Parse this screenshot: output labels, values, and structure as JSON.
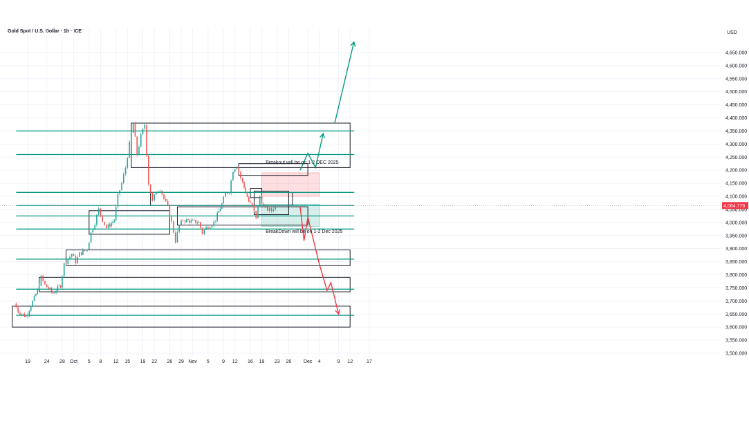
{
  "header": {
    "title": "Gold Spot / U.S. Dollar · 1h · ICE"
  },
  "currency": "USD",
  "colors": {
    "up": "#26a69a",
    "down": "#ef5350",
    "teal": "#089981",
    "red_line": "#f23645",
    "red_zone": "rgba(242,54,69,0.16)",
    "green_zone": "rgba(8,153,129,0.16)",
    "price_tag": "#f23645"
  },
  "chart_data": {
    "type": "candlestick",
    "title": "Gold Spot / U.S. Dollar · 1h · ICE",
    "ylim": [
      3500,
      4700
    ],
    "y_ticks": [
      "4,650.000",
      "4,600.000",
      "4,550.000",
      "4,500.000",
      "4,450.000",
      "4,400.000",
      "4,350.000",
      "4,300.000",
      "4,250.000",
      "4,200.000",
      "4,150.000",
      "4,100.000",
      "4,050.000",
      "4,000.000",
      "3,950.000",
      "3,900.000",
      "3,850.000",
      "3,800.000",
      "3,750.000",
      "3,700.000",
      "3,650.000",
      "3,600.000",
      "3,550.000",
      "3,500.000"
    ],
    "y_tick_values": [
      4650,
      4600,
      4550,
      4500,
      4450,
      4400,
      4350,
      4300,
      4250,
      4200,
      4150,
      4100,
      4050,
      4000,
      3950,
      3900,
      3850,
      3800,
      3750,
      3700,
      3650,
      3600,
      3550,
      3500
    ],
    "x_ticks": [
      "19",
      "24",
      "28",
      "Oct",
      "5",
      "8",
      "12",
      "15",
      "19",
      "22",
      "26",
      "29",
      "Nov",
      "5",
      "9",
      "12",
      "16",
      "19",
      "23",
      "26",
      "Dec",
      "4",
      "9",
      "12",
      "17"
    ],
    "current_price": "4,064.779",
    "price_path": [
      [
        "2025-09-16",
        3690
      ],
      [
        "2025-09-17",
        3660
      ],
      [
        "2025-09-19",
        3640
      ],
      [
        "2025-09-22",
        3740
      ],
      [
        "2025-09-23",
        3790
      ],
      [
        "2025-09-24",
        3760
      ],
      [
        "2025-09-26",
        3730
      ],
      [
        "2025-09-28",
        3760
      ],
      [
        "2025-09-29",
        3840
      ],
      [
        "2025-09-30",
        3860
      ],
      [
        "2025-10-01",
        3880
      ],
      [
        "2025-10-02",
        3850
      ],
      [
        "2025-10-03",
        3880
      ],
      [
        "2025-10-05",
        3900
      ],
      [
        "2025-10-06",
        3960
      ],
      [
        "2025-10-07",
        4000
      ],
      [
        "2025-10-08",
        4050
      ],
      [
        "2025-10-09",
        4010
      ],
      [
        "2025-10-10",
        3980
      ],
      [
        "2025-10-12",
        4010
      ],
      [
        "2025-10-13",
        4100
      ],
      [
        "2025-10-14",
        4150
      ],
      [
        "2025-10-15",
        4210
      ],
      [
        "2025-10-16",
        4300
      ],
      [
        "2025-10-17",
        4380
      ],
      [
        "2025-10-18",
        4260
      ],
      [
        "2025-10-19",
        4330
      ],
      [
        "2025-10-20",
        4375
      ],
      [
        "2025-10-21",
        4150
      ],
      [
        "2025-10-22",
        4080
      ],
      [
        "2025-10-23",
        4120
      ],
      [
        "2025-10-24",
        4130
      ],
      [
        "2025-10-25",
        4090
      ],
      [
        "2025-10-26",
        4060
      ],
      [
        "2025-10-27",
        4000
      ],
      [
        "2025-10-28",
        3930
      ],
      [
        "2025-10-29",
        3990
      ],
      [
        "2025-10-30",
        4010
      ],
      [
        "2025-11-01",
        4005
      ],
      [
        "2025-11-03",
        4000
      ],
      [
        "2025-11-04",
        3960
      ],
      [
        "2025-11-05",
        3980
      ],
      [
        "2025-11-06",
        3990
      ],
      [
        "2025-11-07",
        4000
      ],
      [
        "2025-11-09",
        4070
      ],
      [
        "2025-11-10",
        4110
      ],
      [
        "2025-11-11",
        4120
      ],
      [
        "2025-11-12",
        4200
      ],
      [
        "2025-11-13",
        4220
      ],
      [
        "2025-11-14",
        4170
      ],
      [
        "2025-11-16",
        4080
      ],
      [
        "2025-11-17",
        4060
      ],
      [
        "2025-11-18",
        4020
      ],
      [
        "2025-11-19",
        4100
      ],
      [
        "2025-11-20",
        4060
      ],
      [
        "2025-11-21",
        4050
      ],
      [
        "2025-11-22",
        4045
      ],
      [
        "2025-11-23",
        4065
      ]
    ],
    "zones": [
      {
        "from": "2025-10-16",
        "to": "2025-12-12",
        "low": 4210,
        "high": 4380
      },
      {
        "from": "2025-10-21",
        "to": "2025-11-27",
        "low": 4065,
        "high": 4115
      },
      {
        "from": "2025-11-13",
        "to": "2025-12-01",
        "low": 4180,
        "high": 4225
      },
      {
        "from": "2025-11-16",
        "to": "2025-11-19",
        "low": 4095,
        "high": 4130
      },
      {
        "from": "2025-11-17",
        "to": "2025-11-26",
        "low": 4030,
        "high": 4120
      },
      {
        "from": "2025-10-05",
        "to": "2025-10-26",
        "low": 3955,
        "high": 4045
      },
      {
        "from": "2025-10-28",
        "to": "2025-12-01",
        "low": 3990,
        "high": 4060
      },
      {
        "from": "2025-09-29",
        "to": "2025-12-12",
        "low": 3835,
        "high": 3895
      },
      {
        "from": "2025-09-22",
        "to": "2025-12-12",
        "low": 3735,
        "high": 3790
      },
      {
        "from": "2025-09-15",
        "to": "2025-12-12",
        "low": 3600,
        "high": 3680
      }
    ],
    "colored_zones": [
      {
        "from": "2025-11-19",
        "to": "2025-12-04",
        "low": 4100,
        "high": 4190,
        "color": "red"
      },
      {
        "from": "2025-11-19",
        "to": "2025-12-04",
        "low": 3985,
        "high": 4070,
        "color": "green"
      }
    ],
    "levels": [
      4350,
      4260,
      4115,
      4065,
      4025,
      3975,
      3860,
      3745,
      3645
    ],
    "annotations": [
      {
        "text": "Breakout will be on 1-2 DEC 2025",
        "date": "2025-11-20",
        "price": 4230
      },
      {
        "text": "BreakDown will be on 1-2 Dec 2025",
        "date": "2025-11-20",
        "price": 3965
      }
    ],
    "projection_up": [
      [
        "2025-11-29",
        4200
      ],
      [
        "2025-12-01",
        4265
      ],
      [
        "2025-12-03",
        4210
      ],
      [
        "2025-12-05",
        4340
      ]
    ],
    "projection_up_big": [
      [
        "2025-12-08",
        4380
      ],
      [
        "2025-12-13",
        4690
      ]
    ],
    "projection_down": [
      [
        "2025-11-29",
        4060
      ],
      [
        "2025-11-30",
        3930
      ],
      [
        "2025-12-01",
        4020
      ],
      [
        "2025-12-03",
        3900
      ],
      [
        "2025-12-04",
        3840
      ],
      [
        "2025-12-06",
        3740
      ],
      [
        "2025-12-07",
        3770
      ],
      [
        "2025-12-09",
        3650
      ]
    ]
  }
}
